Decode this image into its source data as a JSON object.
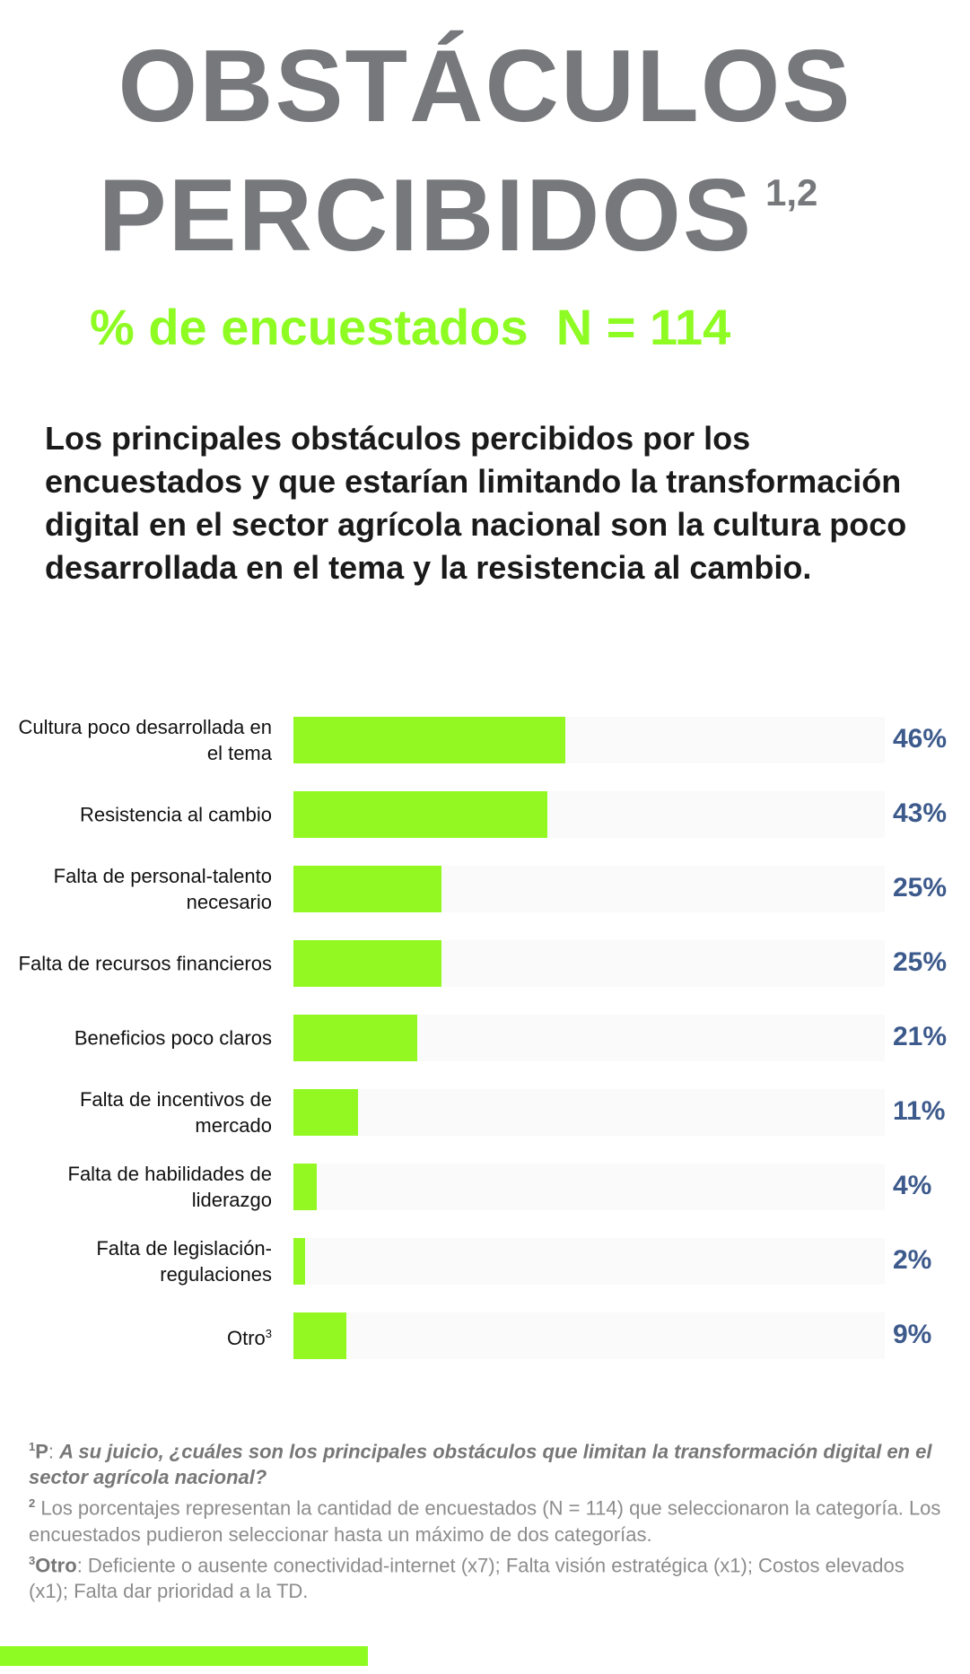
{
  "title": {
    "line1": "OBSTÁCULOS",
    "line2": "PERCIBIDOS",
    "superscript": "1,2"
  },
  "subtitle": "% de encuestados  N = 114",
  "intro": "Los principales obstáculos percibidos por los encuestados y que estarían limitando la transformación digital en el sector agrícola nacional son la cultura poco desarrollada en el tema y la resistencia al cambio.",
  "colors": {
    "bar": "#93f822",
    "track": "#fbfafa",
    "value": "#3d5a8c",
    "title": "#76787b",
    "accent": "#8efb22"
  },
  "chart_data": {
    "type": "bar",
    "orientation": "horizontal",
    "categories": [
      "Cultura poco desarrollada en el tema",
      "Resistencia al cambio",
      "Falta de personal-talento necesario",
      "Falta de recursos financieros",
      "Beneficios poco claros",
      "Falta de incentivos de mercado",
      "Falta de habilidades de liderazgo",
      "Falta de legislación-regulaciones",
      "Otro"
    ],
    "category_superscripts": [
      "",
      "",
      "",
      "",
      "",
      "",
      "",
      "",
      "3"
    ],
    "values": [
      46,
      43,
      25,
      25,
      21,
      11,
      4,
      2,
      9
    ],
    "value_labels": [
      "46%",
      "43%",
      "25%",
      "25%",
      "21%",
      "11%",
      "4%",
      "2%",
      "9%"
    ],
    "xlim": [
      0,
      100
    ],
    "unit": "%"
  },
  "footnotes": {
    "f1": {
      "mark": "1",
      "key": "P",
      "sep": ": ",
      "text": "A su juicio, ¿cuáles son los principales obstáculos que limitan la transformación digital en el sector agrícola nacional?"
    },
    "f2": {
      "mark": "2",
      "text": " Los porcentajes representan la cantidad de encuestados (N = 114) que seleccionaron la categoría. Los encuestados pudieron seleccionar hasta un máximo de dos categorías."
    },
    "f3": {
      "mark": "3",
      "key": "Otro",
      "text": ": Deficiente o ausente conectividad-internet (x7); Falta visión estratégica (x1); Costos elevados (x1); Falta dar prioridad a la TD."
    }
  }
}
